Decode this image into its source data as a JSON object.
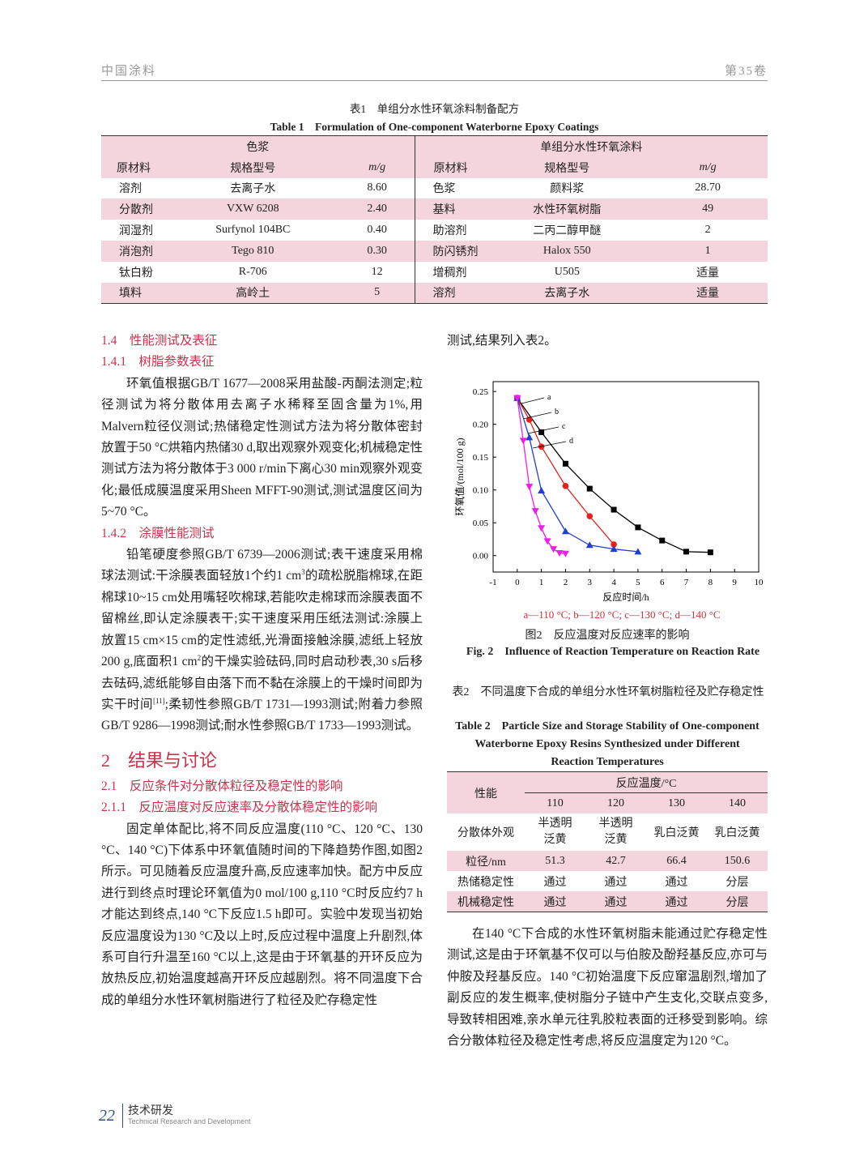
{
  "header": {
    "journal": "中国涂料",
    "volume": "第35卷"
  },
  "table1": {
    "caption_cn": "表1　单组分水性环氧涂料制备配方",
    "caption_en": "Table 1　Formulation of One-component Waterborne Epoxy Coatings",
    "groups": [
      "色浆",
      "单组分水性环氧涂料"
    ],
    "columns": [
      "原材料",
      "规格型号",
      "m/g",
      "原材料",
      "规格型号",
      "m/g"
    ],
    "rows": [
      [
        "溶剂",
        "去离子水",
        "8.60",
        "色浆",
        "颜料浆",
        "28.70"
      ],
      [
        "分散剂",
        "VXW 6208",
        "2.40",
        "基料",
        "水性环氧树脂",
        "49"
      ],
      [
        "润湿剂",
        "Surfynol 104BC",
        "0.40",
        "助溶剂",
        "二丙二醇甲醚",
        "2"
      ],
      [
        "消泡剂",
        "Tego 810",
        "0.30",
        "防闪锈剂",
        "Halox 550",
        "1"
      ],
      [
        "钛白粉",
        "R-706",
        "12",
        "增稠剂",
        "U505",
        "适量"
      ],
      [
        "填料",
        "高岭土",
        "5",
        "溶剂",
        "去离子水",
        "适量"
      ]
    ]
  },
  "left": {
    "h1_4": "1.4　性能测试及表征",
    "h1_4_1": "1.4.1　树脂参数表征",
    "p1": [
      {
        "text": "环氧值根据GB/T 1677—2008采用盐酸-丙酮法测定;粒径测试为将分散体用去离子水稀释至固含量为1%,用Malvern粒径仪测试;热储稳定性测试方法为将分散体密封放置于50 °C烘箱内热储30 d,取出观察外观变化;机械稳定性测试方法为将分散体于3 000 r/min下离心30 min观察外观变化;最低成膜温度采用Sheen MFFT-90测试,测试温度区间为5~70 °C。"
      }
    ],
    "h1_4_2": "1.4.2　涂膜性能测试",
    "p2": [
      {
        "text": "铅笔硬度参照GB/T 6739—2006测试;表干速度采用棉球法测试:干涂膜表面轻放1个约1 cm"
      },
      {
        "sup": "3"
      },
      {
        "text": "的疏松脱脂棉球,在距棉球10~15 cm处用嘴轻吹棉球,若能吹走棉球而涂膜表面不留棉丝,即认定涂膜表干;实干速度采用压纸法测试:涂膜上放置15 cm×15 cm的定性滤纸,光滑面接触涂膜,滤纸上轻放200 g,底面积1 cm"
      },
      {
        "sup": "2"
      },
      {
        "text": "的干燥实验砝码,同时启动秒表,30 s后移去砝码,滤纸能够自由落下而不黏在涂膜上的干燥时间即为实干时间"
      },
      {
        "sup": "[11]"
      },
      {
        "text": ";柔韧性参照GB/T 1731—1993测试;附着力参照GB/T 9286—1998测试;耐水性参照GB/T 1733—1993测试。"
      }
    ],
    "h2": "2　结果与讨论",
    "h2_1": "2.1　反应条件对分散体粒径及稳定性的影响",
    "h2_1_1": "2.1.1　反应温度对反应速率及分散体稳定性的影响",
    "p3": [
      {
        "text": "固定单体配比,将不同反应温度(110 °C、120 °C、130 °C、140 °C)下体系中环氧值随时间的下降趋势作图,如图2所示。可见随着反应温度升高,反应速率加快。配方中反应进行到终点时理论环氧值为0 mol/100 g,110 °C时反应约7 h才能达到终点,140 °C下反应1.5 h即可。实验中发现当初始反应温度设为130 °C及以上时,反应过程中温度上升剧烈,体系可自行升温至160 °C以上,这是由于环氧基的开环反应为放热反应,初始温度越高开环反应越剧烈。将不同温度下合成的单组分水性环氧树脂进行了粒径及贮存稳定性"
      }
    ]
  },
  "right": {
    "p0": "测试,结果列入表2。",
    "fig_caption_cn": "图2　反应温度对反应速率的影响",
    "fig_caption_en": "Fig. 2　Influence of Reaction Temperature on Reaction Rate",
    "p4": "在140 °C下合成的水性环氧树脂未能通过贮存稳定性测试,这是由于环氧基不仅可以与伯胺及酚羟基反应,亦可与仲胺及羟基反应。140 °C初始温度下反应窜温剧烈,增加了副反应的发生概率,使树脂分子链中产生支化,交联点变多,导致转相困难,亲水单元往乳胶粒表面的迁移受到影响。综合分散体粒径及稳定性考虑,将反应温度定为120 °C。"
  },
  "chart_data": {
    "type": "line",
    "xlabel": "反应时间/h",
    "ylabel": "环氧值/(mol/100 g)",
    "legend_text": "a—110 °C; b—120 °C; c—130 °C; d—140 °C",
    "xlim": [
      -1,
      10
    ],
    "ylim": [
      -0.025,
      0.265
    ],
    "xticks": [
      -1,
      0,
      1,
      2,
      3,
      4,
      5,
      6,
      7,
      8,
      9,
      10
    ],
    "yticks": [
      {
        "value": 0,
        "label": "0.00"
      },
      {
        "value": 0.05,
        "label": "0.05"
      },
      {
        "value": 0.1,
        "label": "0.10"
      },
      {
        "value": 0.15,
        "label": "0.15"
      },
      {
        "value": 0.2,
        "label": "0.20"
      },
      {
        "value": 0.25,
        "label": "0.25"
      }
    ],
    "series": [
      {
        "name": "a",
        "color": "#000000",
        "marker": "square",
        "x": [
          0,
          1,
          2,
          3,
          4,
          5,
          6,
          7,
          8
        ],
        "values": [
          0.24,
          0.188,
          0.14,
          0.102,
          0.07,
          0.043,
          0.023,
          0.006,
          0.005
        ]
      },
      {
        "name": "b",
        "color": "#e8201c",
        "marker": "circle",
        "x": [
          0,
          0.5,
          1,
          2,
          3,
          4
        ],
        "values": [
          0.24,
          0.207,
          0.166,
          0.106,
          0.06,
          0.017
        ]
      },
      {
        "name": "c",
        "color": "#1f3fd0",
        "marker": "triangle",
        "x": [
          0,
          0.5,
          1,
          2,
          3,
          4,
          5
        ],
        "values": [
          0.24,
          0.18,
          0.099,
          0.037,
          0.016,
          0.01,
          0.006
        ]
      },
      {
        "name": "d",
        "color": "#ee1ee6",
        "marker": "triangle-down",
        "x": [
          0,
          0.25,
          0.5,
          0.75,
          1,
          1.25,
          1.5,
          1.75,
          2
        ],
        "values": [
          0.24,
          0.175,
          0.105,
          0.068,
          0.042,
          0.022,
          0.01,
          0.004,
          0.003
        ]
      }
    ]
  },
  "table2": {
    "caption_cn": "表2　不同温度下合成的单组分水性环氧树脂粒径及贮存稳定性",
    "caption_en": "Table 2　Particle Size and Storage Stability of One-component Waterborne Epoxy Resins Synthesized under Different Reaction Temperatures",
    "header": "性能",
    "group": "反应温度/°C",
    "temps": [
      "110",
      "120",
      "130",
      "140"
    ],
    "rows": [
      [
        "分散体外观",
        "半透明泛黄",
        "半透明泛黄",
        "乳白泛黄",
        "乳白泛黄"
      ],
      [
        "粒径/nm",
        "51.3",
        "42.7",
        "66.4",
        "150.6"
      ],
      [
        "热储稳定性",
        "通过",
        "通过",
        "通过",
        "分层"
      ],
      [
        "机械稳定性",
        "通过",
        "通过",
        "通过",
        "分层"
      ]
    ]
  },
  "footer": {
    "page": "22",
    "section_cn": "技术研发",
    "section_en": "Technical Research and Development"
  }
}
